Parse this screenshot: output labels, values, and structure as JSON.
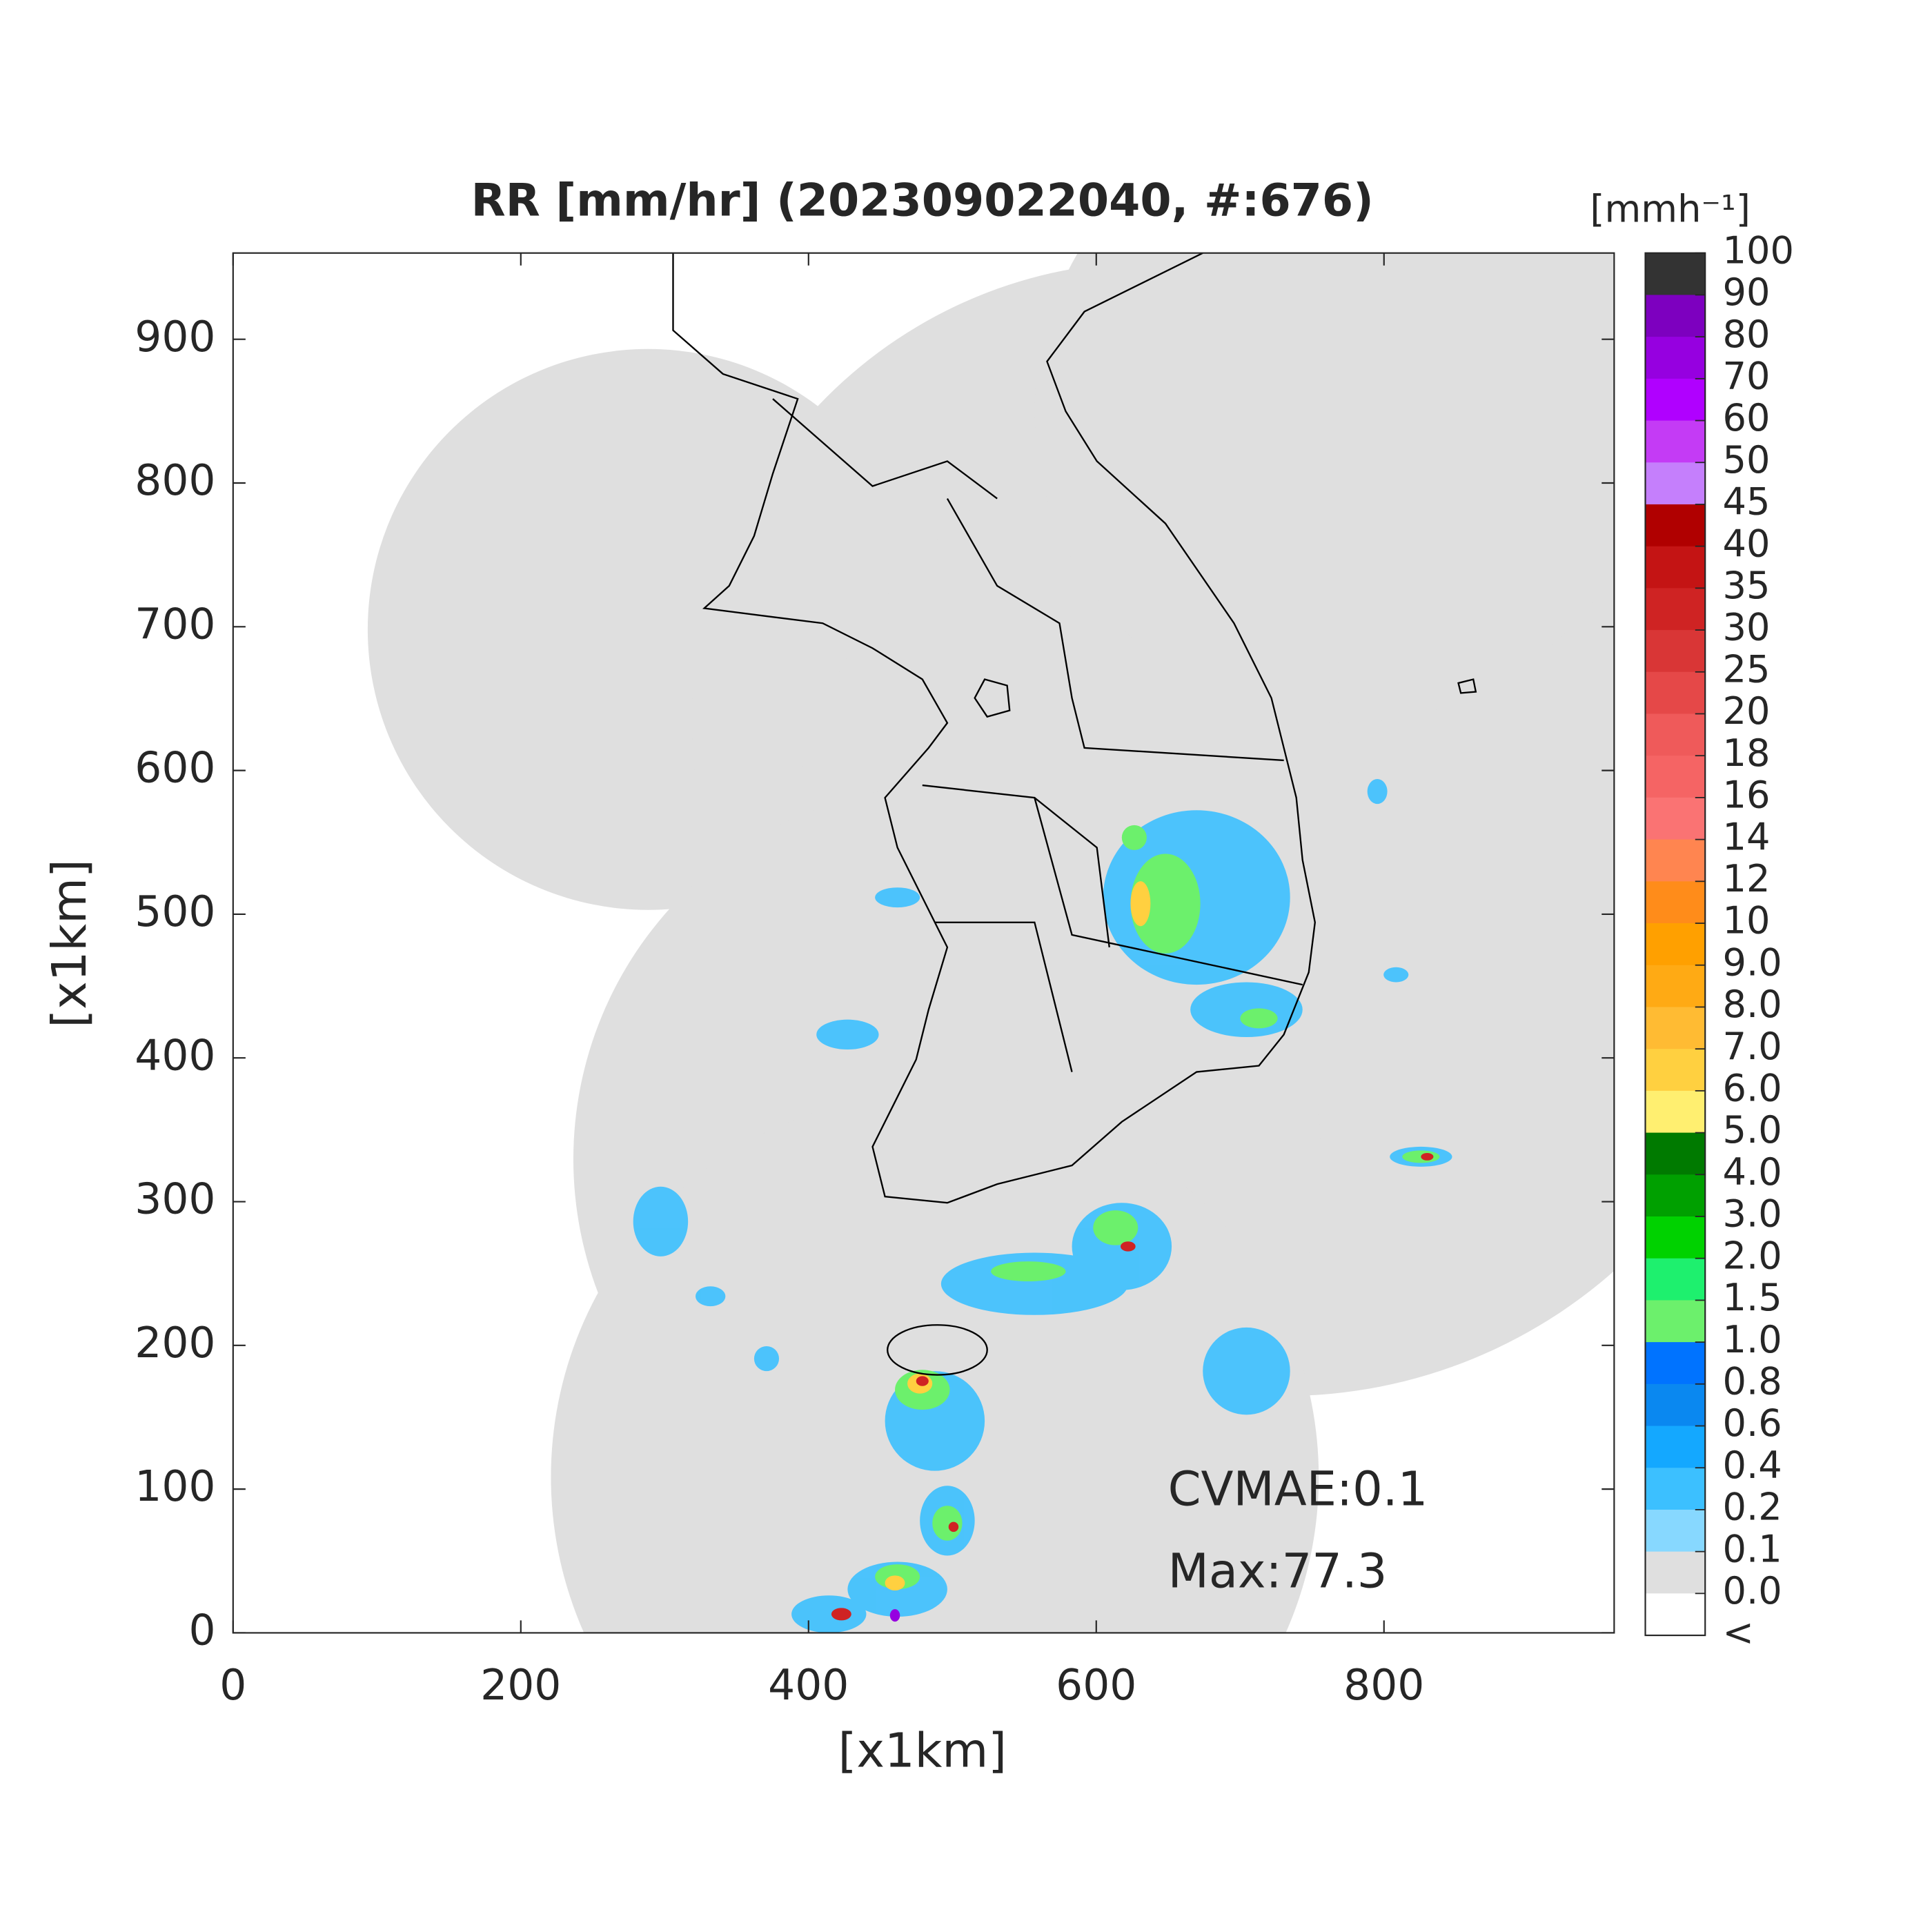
{
  "chart_data": {
    "type": "radar_map",
    "title": "RR [mm/hr] (202309022040, #:676)",
    "xlabel": "[x1km]",
    "ylabel": "[x1km]",
    "xlim": [
      0,
      960
    ],
    "ylim": [
      0,
      960
    ],
    "xticks": [
      0,
      200,
      400,
      600,
      800
    ],
    "yticks": [
      0,
      100,
      200,
      300,
      400,
      500,
      600,
      700,
      800,
      900
    ],
    "annotations": [
      "CVMAE:0.1",
      "Max:77.3"
    ],
    "colorbar": {
      "title": "[mmh⁻¹]",
      "labels": [
        "100",
        "90",
        "80",
        "70",
        "60",
        "50",
        "45",
        "40",
        "35",
        "30",
        "25",
        "20",
        "18",
        "16",
        "14",
        "12",
        "10",
        "9.0",
        "8.0",
        "7.0",
        "6.0",
        "5.0",
        "4.0",
        "3.0",
        "2.0",
        "1.5",
        "1.0",
        "0.8",
        "0.6",
        "0.4",
        "0.2",
        "0.1",
        "0.0",
        "<"
      ],
      "colors": [
        "#333333",
        "#7d00bf",
        "#9600e0",
        "#b000ff",
        "#c43bf5",
        "#c57ffc",
        "#b00000",
        "#c41414",
        "#cf2323",
        "#d93636",
        "#e54848",
        "#ef5a5a",
        "#f56464",
        "#fa7373",
        "#ff8550",
        "#ff8c1a",
        "#ffa000",
        "#ffaa14",
        "#ffbb33",
        "#ffd040",
        "#ffef70",
        "#007a00",
        "#00a000",
        "#00d200",
        "#1ef06e",
        "#6cf06c",
        "#0073ff",
        "#0a88f0",
        "#14a8ff",
        "#3cc0ff",
        "#87d8ff",
        "#dfdfdf",
        "#ffffff"
      ]
    }
  }
}
